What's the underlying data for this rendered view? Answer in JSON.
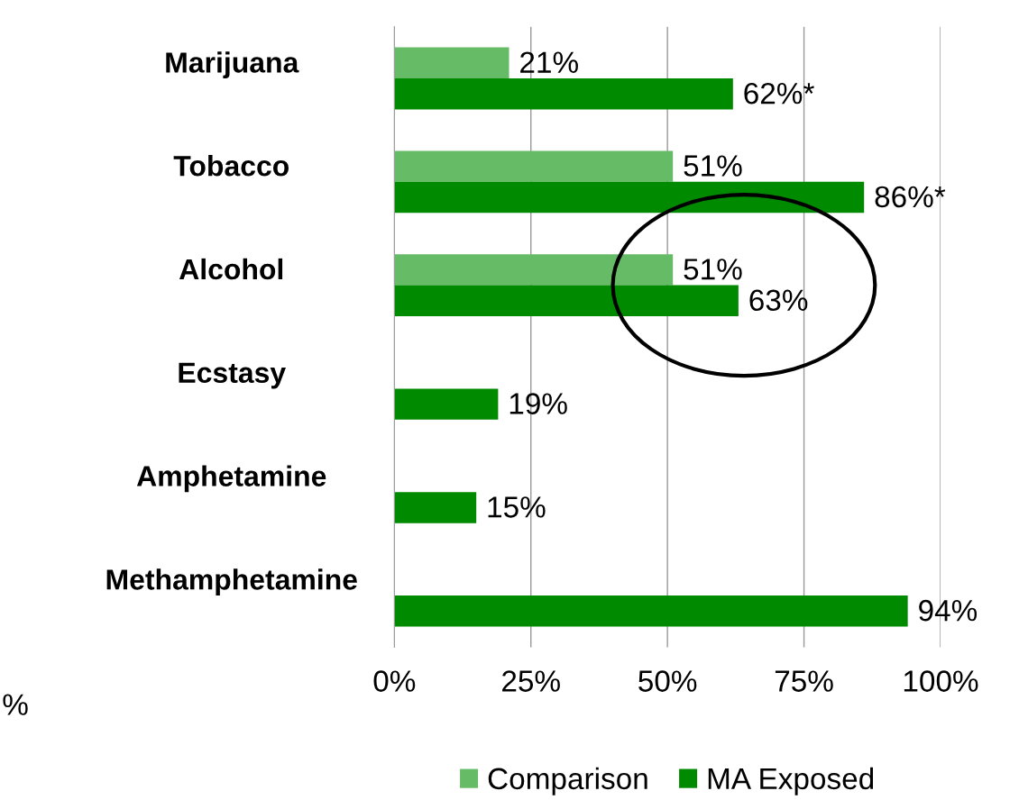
{
  "chart_data": {
    "type": "bar",
    "orientation": "horizontal",
    "categories": [
      "Marijuana",
      "Tobacco",
      "Alcohol",
      "Ecstasy",
      "Amphetamine",
      "Methamphetamine"
    ],
    "series": [
      {
        "name": "Comparison",
        "color": "#66bb66",
        "values": [
          21,
          51,
          51,
          null,
          null,
          null
        ],
        "value_labels": [
          "21%",
          "51%",
          "51%",
          null,
          null,
          null
        ]
      },
      {
        "name": "MA Exposed",
        "color": "#008a00",
        "values": [
          62,
          86,
          63,
          19,
          15,
          94
        ],
        "value_labels": [
          "62%*",
          "86%*",
          "63%",
          "19%",
          "15%",
          "94%"
        ]
      }
    ],
    "xlim": [
      0,
      100
    ],
    "xticks": [
      {
        "value": 0,
        "label": "0%"
      },
      {
        "value": 25,
        "label": "25%"
      },
      {
        "value": 50,
        "label": "50%"
      },
      {
        "value": 75,
        "label": "75%"
      },
      {
        "value": 100,
        "label": "100%"
      }
    ],
    "grid": "x",
    "legend": "bottom",
    "annotations": [
      "%"
    ]
  }
}
